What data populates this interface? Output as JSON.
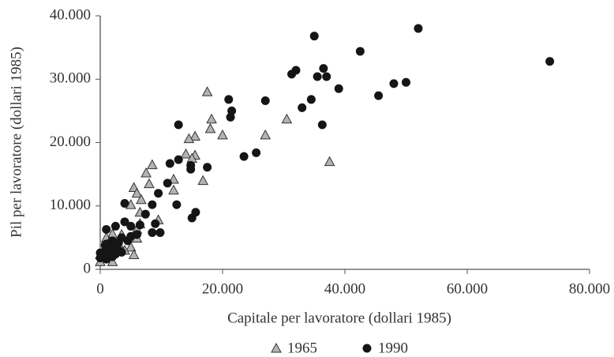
{
  "chart_data": {
    "type": "scatter",
    "x_label": "Capitale per lavoratore (dollari 1985)",
    "y_label": "Pil per lavoratore (dollari 1985)",
    "xlim": [
      0,
      80000
    ],
    "ylim": [
      0,
      40000
    ],
    "xticks": [
      0,
      {
        "value": 20000,
        "label": "20.000"
      },
      {
        "value": 40000,
        "label": "40.000"
      },
      {
        "value": 60000,
        "label": "60.000"
      },
      {
        "value": 80000,
        "label": "80.000"
      }
    ],
    "yticks": [
      0,
      {
        "value": 10000,
        "label": "10.000"
      },
      {
        "value": 20000,
        "label": "20.000"
      },
      {
        "value": 30000,
        "label": "30.000"
      },
      {
        "value": 40000,
        "label": "40.000"
      }
    ],
    "legend": "bottom",
    "series": [
      {
        "name": "1965",
        "marker": "triangle",
        "color": "#b3b3b3",
        "x": [
          17500,
          18200,
          18000,
          20000,
          27000,
          15500,
          14500,
          30500,
          14000,
          15500,
          15000,
          37500,
          8500,
          7500,
          12000,
          16800,
          8000,
          5500,
          6000,
          12000,
          6700,
          5000,
          6500,
          9500,
          6500,
          6000,
          2000,
          3500,
          1000,
          6000,
          1500,
          3000,
          5000,
          4000,
          2000,
          5500,
          1000,
          0,
          2000,
          0,
          1500
        ],
        "values": [
          28000,
          23700,
          22200,
          21200,
          21200,
          21000,
          20600,
          23700,
          18200,
          18000,
          17500,
          17000,
          16500,
          15200,
          14200,
          14000,
          13500,
          12900,
          12000,
          12500,
          11000,
          10200,
          9000,
          7800,
          7200,
          6300,
          5600,
          5500,
          5000,
          4900,
          4400,
          4000,
          3500,
          3000,
          2800,
          2300,
          2500,
          1200,
          1200,
          2300,
          3800
        ]
      },
      {
        "name": "1990",
        "marker": "circle",
        "color": "#151515",
        "x": [
          52000,
          35000,
          42500,
          73500,
          36500,
          32000,
          31300,
          35500,
          37000,
          48000,
          50000,
          39000,
          45500,
          27000,
          34500,
          21000,
          33000,
          21500,
          21300,
          12800,
          36300,
          25500,
          23500,
          12800,
          11400,
          14800,
          17500,
          14800,
          11000,
          9500,
          12500,
          8500,
          4000,
          15600,
          15000,
          7400,
          4000,
          9000,
          6500,
          5000,
          2500,
          1000,
          9800,
          8500,
          6000,
          5000,
          3500,
          2000,
          1000,
          3000,
          4500,
          2000,
          1500,
          3000,
          500,
          0,
          2500,
          1500,
          3500,
          0,
          1000,
          2000,
          800,
          2500
        ],
        "values": [
          38000,
          36800,
          34400,
          32800,
          31700,
          31400,
          30800,
          30400,
          30400,
          29300,
          29500,
          28500,
          27400,
          26600,
          26800,
          26800,
          25500,
          25000,
          24000,
          22800,
          22800,
          18400,
          17800,
          17300,
          16700,
          16400,
          16100,
          15800,
          13600,
          12000,
          10200,
          10200,
          10400,
          9000,
          8100,
          8700,
          7500,
          7200,
          7000,
          6800,
          6800,
          6300,
          5800,
          5800,
          5500,
          5200,
          5000,
          4500,
          4000,
          4200,
          4500,
          3500,
          3200,
          3000,
          2700,
          2600,
          2400,
          2200,
          2700,
          1800,
          1600,
          2000,
          3800,
          4000
        ]
      }
    ]
  }
}
